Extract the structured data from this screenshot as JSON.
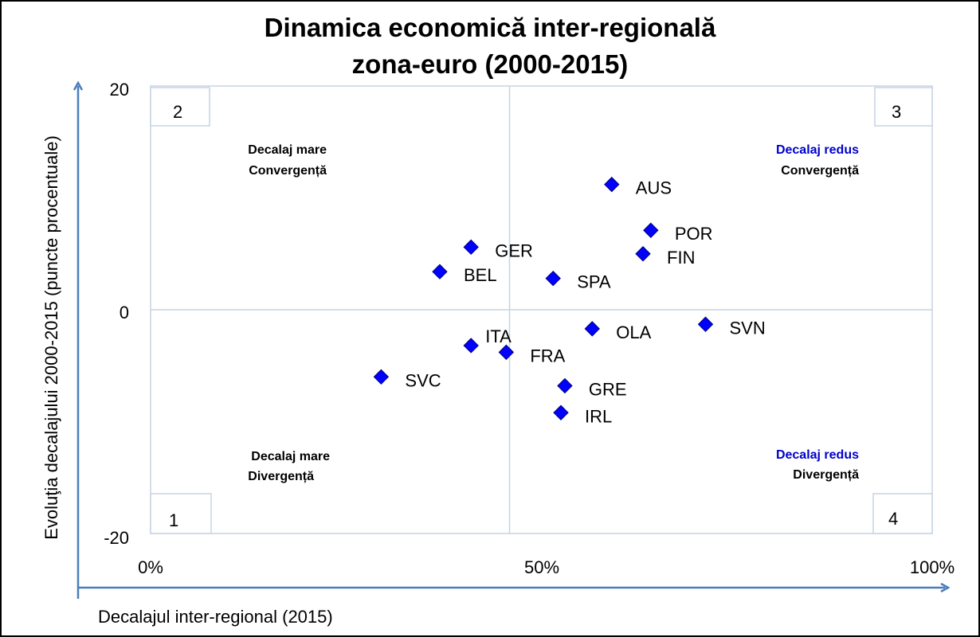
{
  "chart_data": {
    "type": "scatter",
    "title_lines": [
      "Dinamica economică inter-regională",
      "zona-euro (2000-2015)"
    ],
    "xlabel": "Decalajul inter-regional (2015)",
    "ylabel": "Evoluţia decalajului 2000-2015 (puncte procentuale)",
    "xlim": [
      0,
      100
    ],
    "ylim": [
      -20,
      20
    ],
    "x_ticks": [
      "0%",
      "50%",
      "100%"
    ],
    "y_ticks": [
      "20",
      "0",
      "-20"
    ],
    "points": [
      {
        "label": "AUS",
        "x": 59,
        "y": 11.2
      },
      {
        "label": "POR",
        "x": 64,
        "y": 7.1
      },
      {
        "label": "FIN",
        "x": 63,
        "y": 5.0
      },
      {
        "label": "GER",
        "x": 41,
        "y": 5.6
      },
      {
        "label": "BEL",
        "x": 37,
        "y": 3.4
      },
      {
        "label": "SPA",
        "x": 51.5,
        "y": 2.8
      },
      {
        "label": "OLA",
        "x": 56.5,
        "y": -1.7
      },
      {
        "label": "SVN",
        "x": 71,
        "y": -1.3
      },
      {
        "label": "ITA",
        "x": 41,
        "y": -3.2
      },
      {
        "label": "FRA",
        "x": 45.5,
        "y": -3.8
      },
      {
        "label": "SVC",
        "x": 29.5,
        "y": -6.0
      },
      {
        "label": "GRE",
        "x": 53,
        "y": -6.8
      },
      {
        "label": "IRL",
        "x": 52.5,
        "y": -9.2
      }
    ],
    "marker_color": "#0000ff",
    "quadrants": [
      {
        "number": "2",
        "line1": "Decalaj mare",
        "line2": "Convergență",
        "line1_color": "#000000"
      },
      {
        "number": "3",
        "line1": "Decalaj redus",
        "line2": "Convergență",
        "line1_color": "#0000cc"
      },
      {
        "number": "1",
        "line1": "Decalaj mare",
        "line2": "Divergență",
        "line1_color": "#000000"
      },
      {
        "number": "4",
        "line1": "Decalaj redus",
        "line2": "Divergență",
        "line1_color": "#0000cc"
      }
    ],
    "grid": true,
    "axis_arrow_color": "#4a7ebb"
  }
}
